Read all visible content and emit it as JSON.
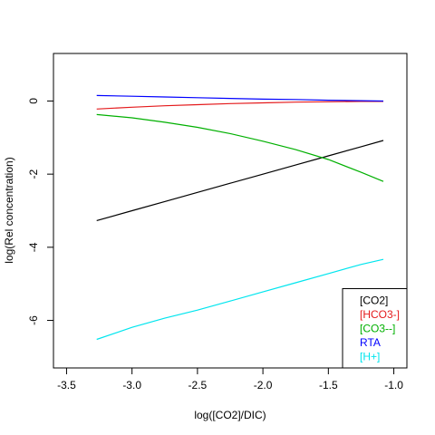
{
  "chart_data": {
    "type": "line",
    "title": "",
    "xlabel": "log([CO2]/DIC)",
    "ylabel": "log(Rel concentration)",
    "xlim": [
      -3.6,
      -0.9
    ],
    "ylim": [
      -7.3,
      1.3
    ],
    "x_ticks": [
      -3.5,
      -3.0,
      -2.5,
      -2.0,
      -1.5,
      -1.0
    ],
    "x_tick_labels": [
      "-3.5",
      "-3.0",
      "-2.5",
      "-2.0",
      "-1.5",
      "-1.0"
    ],
    "y_ticks": [
      0,
      -2,
      -4,
      -6
    ],
    "y_tick_labels": [
      "0",
      "-2",
      "-4",
      "-6"
    ],
    "grid": false,
    "legend_position": "bottom-right",
    "x": [
      -3.27,
      -3.0,
      -2.75,
      -2.5,
      -2.25,
      -2.0,
      -1.75,
      -1.5,
      -1.25,
      -1.08
    ],
    "series": [
      {
        "name": "[CO2]",
        "color": "#000000",
        "values": [
          -3.27,
          -3.0,
          -2.75,
          -2.5,
          -2.25,
          -2.0,
          -1.75,
          -1.5,
          -1.25,
          -1.08
        ]
      },
      {
        "name": "[HCO3-]",
        "color": "#e41a1c",
        "values": [
          -0.22,
          -0.17,
          -0.13,
          -0.1,
          -0.07,
          -0.05,
          -0.03,
          -0.02,
          -0.01,
          -0.01
        ]
      },
      {
        "name": "[CO3--]",
        "color": "#00b000",
        "values": [
          -0.37,
          -0.46,
          -0.58,
          -0.72,
          -0.89,
          -1.1,
          -1.33,
          -1.6,
          -1.95,
          -2.2
        ]
      },
      {
        "name": "RTA",
        "color": "#0000ff",
        "values": [
          0.15,
          0.13,
          0.11,
          0.09,
          0.07,
          0.05,
          0.04,
          0.02,
          0.01,
          0.0
        ]
      },
      {
        "name": "[H+]",
        "color": "#00e5ee",
        "values": [
          -6.52,
          -6.19,
          -5.94,
          -5.72,
          -5.47,
          -5.22,
          -4.97,
          -4.72,
          -4.47,
          -4.33
        ]
      }
    ]
  }
}
